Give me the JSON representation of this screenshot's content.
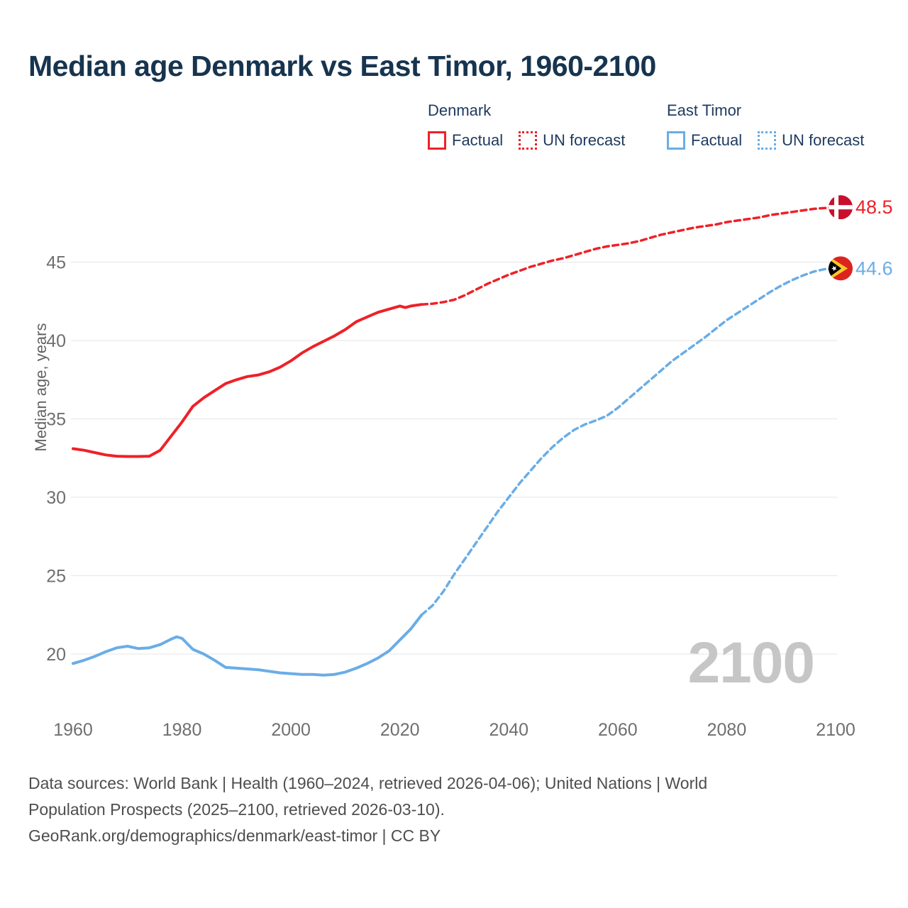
{
  "title": "Median age Denmark vs East Timor, 1960-2100",
  "legend": {
    "groups": [
      {
        "name": "Denmark",
        "color": "#ee2128",
        "items": [
          {
            "label": "Factual",
            "style": "solid"
          },
          {
            "label": "UN forecast",
            "style": "dotted"
          }
        ]
      },
      {
        "name": "East Timor",
        "color": "#6aade6",
        "items": [
          {
            "label": "Factual",
            "style": "solid"
          },
          {
            "label": "UN forecast",
            "style": "dotted"
          }
        ]
      }
    ]
  },
  "chart_data": {
    "type": "line",
    "title": "Median age Denmark vs East Timor, 1960-2100",
    "xlabel": "",
    "ylabel": "Median age, years",
    "xlim": [
      1960,
      2100
    ],
    "ylim": [
      18,
      50
    ],
    "x_ticks": [
      1960,
      1980,
      2000,
      2020,
      2040,
      2060,
      2080,
      2100
    ],
    "y_ticks": [
      20,
      25,
      30,
      35,
      40,
      45
    ],
    "grid": "horizontal",
    "legend_position": "top-right",
    "watermark": "2100",
    "series": [
      {
        "name": "Denmark Factual",
        "color": "#ee2128",
        "dash": false,
        "points": [
          [
            1960,
            33.1
          ],
          [
            1962,
            33.0
          ],
          [
            1964,
            32.85
          ],
          [
            1966,
            32.7
          ],
          [
            1968,
            32.62
          ],
          [
            1970,
            32.6
          ],
          [
            1972,
            32.6
          ],
          [
            1974,
            32.62
          ],
          [
            1976,
            33.0
          ],
          [
            1978,
            33.9
          ],
          [
            1980,
            34.8
          ],
          [
            1982,
            35.8
          ],
          [
            1984,
            36.35
          ],
          [
            1986,
            36.8
          ],
          [
            1988,
            37.25
          ],
          [
            1990,
            37.5
          ],
          [
            1992,
            37.7
          ],
          [
            1994,
            37.8
          ],
          [
            1996,
            38.0
          ],
          [
            1998,
            38.3
          ],
          [
            2000,
            38.7
          ],
          [
            2002,
            39.2
          ],
          [
            2004,
            39.6
          ],
          [
            2006,
            39.95
          ],
          [
            2008,
            40.3
          ],
          [
            2010,
            40.7
          ],
          [
            2012,
            41.2
          ],
          [
            2014,
            41.5
          ],
          [
            2016,
            41.8
          ],
          [
            2018,
            42.0
          ],
          [
            2020,
            42.2
          ],
          [
            2021,
            42.1
          ],
          [
            2022,
            42.2
          ],
          [
            2024,
            42.3
          ]
        ]
      },
      {
        "name": "Denmark UN forecast",
        "color": "#ee2128",
        "dash": true,
        "points": [
          [
            2024,
            42.3
          ],
          [
            2026,
            42.35
          ],
          [
            2028,
            42.45
          ],
          [
            2030,
            42.6
          ],
          [
            2032,
            42.9
          ],
          [
            2034,
            43.25
          ],
          [
            2036,
            43.6
          ],
          [
            2038,
            43.9
          ],
          [
            2040,
            44.2
          ],
          [
            2042,
            44.45
          ],
          [
            2044,
            44.7
          ],
          [
            2046,
            44.9
          ],
          [
            2048,
            45.1
          ],
          [
            2050,
            45.25
          ],
          [
            2052,
            45.45
          ],
          [
            2054,
            45.65
          ],
          [
            2056,
            45.85
          ],
          [
            2058,
            46.0
          ],
          [
            2060,
            46.1
          ],
          [
            2062,
            46.2
          ],
          [
            2064,
            46.35
          ],
          [
            2066,
            46.55
          ],
          [
            2068,
            46.75
          ],
          [
            2070,
            46.9
          ],
          [
            2072,
            47.05
          ],
          [
            2074,
            47.2
          ],
          [
            2076,
            47.3
          ],
          [
            2078,
            47.4
          ],
          [
            2080,
            47.55
          ],
          [
            2082,
            47.65
          ],
          [
            2084,
            47.75
          ],
          [
            2086,
            47.85
          ],
          [
            2088,
            48.0
          ],
          [
            2090,
            48.1
          ],
          [
            2092,
            48.2
          ],
          [
            2094,
            48.3
          ],
          [
            2096,
            48.4
          ],
          [
            2098,
            48.45
          ],
          [
            2100,
            48.5
          ]
        ]
      },
      {
        "name": "East Timor Factual",
        "color": "#6aade6",
        "dash": false,
        "points": [
          [
            1960,
            19.4
          ],
          [
            1962,
            19.6
          ],
          [
            1964,
            19.85
          ],
          [
            1966,
            20.15
          ],
          [
            1968,
            20.4
          ],
          [
            1970,
            20.5
          ],
          [
            1972,
            20.35
          ],
          [
            1974,
            20.4
          ],
          [
            1976,
            20.6
          ],
          [
            1978,
            20.95
          ],
          [
            1979,
            21.1
          ],
          [
            1980,
            21.0
          ],
          [
            1982,
            20.3
          ],
          [
            1984,
            20.0
          ],
          [
            1986,
            19.6
          ],
          [
            1988,
            19.15
          ],
          [
            1990,
            19.1
          ],
          [
            1992,
            19.05
          ],
          [
            1994,
            19.0
          ],
          [
            1996,
            18.9
          ],
          [
            1998,
            18.8
          ],
          [
            2000,
            18.75
          ],
          [
            2002,
            18.7
          ],
          [
            2004,
            18.7
          ],
          [
            2006,
            18.65
          ],
          [
            2008,
            18.7
          ],
          [
            2010,
            18.85
          ],
          [
            2012,
            19.1
          ],
          [
            2014,
            19.4
          ],
          [
            2016,
            19.75
          ],
          [
            2018,
            20.2
          ],
          [
            2020,
            20.9
          ],
          [
            2022,
            21.6
          ],
          [
            2024,
            22.5
          ]
        ]
      },
      {
        "name": "East Timor UN forecast",
        "color": "#6aade6",
        "dash": true,
        "points": [
          [
            2024,
            22.5
          ],
          [
            2026,
            23.1
          ],
          [
            2028,
            24.0
          ],
          [
            2030,
            25.1
          ],
          [
            2032,
            26.1
          ],
          [
            2034,
            27.1
          ],
          [
            2036,
            28.1
          ],
          [
            2038,
            29.1
          ],
          [
            2040,
            30.0
          ],
          [
            2042,
            30.9
          ],
          [
            2044,
            31.7
          ],
          [
            2046,
            32.5
          ],
          [
            2048,
            33.2
          ],
          [
            2050,
            33.8
          ],
          [
            2052,
            34.3
          ],
          [
            2054,
            34.65
          ],
          [
            2056,
            34.9
          ],
          [
            2058,
            35.2
          ],
          [
            2060,
            35.7
          ],
          [
            2062,
            36.3
          ],
          [
            2064,
            36.9
          ],
          [
            2066,
            37.5
          ],
          [
            2068,
            38.1
          ],
          [
            2070,
            38.7
          ],
          [
            2072,
            39.2
          ],
          [
            2074,
            39.7
          ],
          [
            2076,
            40.2
          ],
          [
            2078,
            40.75
          ],
          [
            2080,
            41.3
          ],
          [
            2082,
            41.75
          ],
          [
            2084,
            42.2
          ],
          [
            2086,
            42.65
          ],
          [
            2088,
            43.1
          ],
          [
            2090,
            43.5
          ],
          [
            2092,
            43.85
          ],
          [
            2094,
            44.15
          ],
          [
            2096,
            44.4
          ],
          [
            2098,
            44.55
          ],
          [
            2100,
            44.6
          ]
        ]
      }
    ],
    "end_labels": [
      {
        "text": "48.5",
        "value": 48.5,
        "color": "#ee2128",
        "flag": "denmark"
      },
      {
        "text": "44.6",
        "value": 44.6,
        "color": "#6aade6",
        "flag": "east-timor"
      }
    ]
  },
  "colors": {
    "denmark_line": "#ee2128",
    "east_timor_line": "#6aade6",
    "title_text": "#17344f",
    "legend_text": "#1d3a5e",
    "tick_text": "#6f6f6f",
    "gridline": "#e9e9e9",
    "watermark": "#c6c6c6",
    "footer_text": "#4e4e4e",
    "dk_flag_red": "#c8102e",
    "tl_flag_red": "#dc241f",
    "tl_flag_yellow": "#ffc726"
  },
  "footer": {
    "lines": [
      "Data sources: World Bank | Health (1960–2024, retrieved 2026-04-06); United Nations | World",
      "Population Prospects (2025–2100, retrieved 2026-03-10).",
      "GeoRank.org/demographics/denmark/east-timor | CC BY"
    ]
  }
}
